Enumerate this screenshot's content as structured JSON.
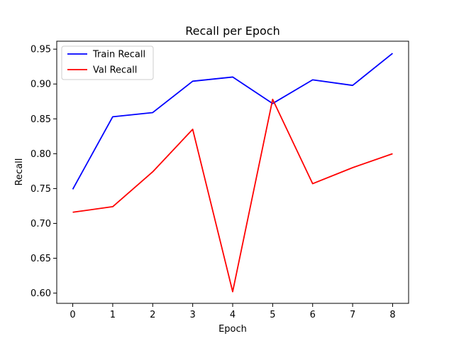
{
  "chart_data": {
    "type": "line",
    "title": "Recall per Epoch",
    "xlabel": "Epoch",
    "ylabel": "Recall",
    "x": [
      0,
      1,
      2,
      3,
      4,
      5,
      6,
      7,
      8
    ],
    "xticks": [
      "0",
      "1",
      "2",
      "3",
      "4",
      "5",
      "6",
      "7",
      "8"
    ],
    "yticks": [
      "0.60",
      "0.65",
      "0.70",
      "0.75",
      "0.80",
      "0.85",
      "0.90",
      "0.95"
    ],
    "xlim": [
      -0.4,
      8.4
    ],
    "ylim": [
      0.5853,
      0.9614
    ],
    "grid": false,
    "legend_position": "upper-left",
    "series": [
      {
        "name": "Train Recall",
        "color": "#0000ff",
        "values": [
          0.749,
          0.853,
          0.859,
          0.904,
          0.91,
          0.872,
          0.906,
          0.898,
          0.944
        ]
      },
      {
        "name": "Val Recall",
        "color": "#ff0000",
        "values": [
          0.716,
          0.724,
          0.774,
          0.835,
          0.602,
          0.878,
          0.757,
          0.78,
          0.8
        ]
      }
    ]
  }
}
